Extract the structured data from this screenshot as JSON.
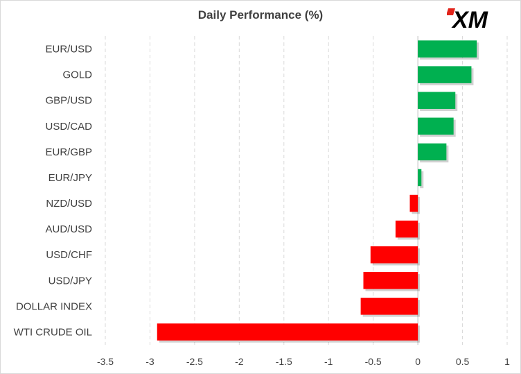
{
  "title": "Daily Performance (%)",
  "logo_text": "XM",
  "colors": {
    "positive": "#00b050",
    "negative": "#ff0000",
    "grid": "#d9d9d9",
    "text": "#404040"
  },
  "chart_data": {
    "type": "bar",
    "orientation": "horizontal",
    "title": "Daily Performance (%)",
    "categories": [
      "EUR/USD",
      "GOLD",
      "GBP/USD",
      "USD/CAD",
      "EUR/GBP",
      "EUR/JPY",
      "NZD/USD",
      "AUD/USD",
      "USD/CHF",
      "USD/JPY",
      "DOLLAR INDEX",
      "WTI CRUDE OIL"
    ],
    "values": [
      0.66,
      0.6,
      0.42,
      0.4,
      0.32,
      0.04,
      -0.09,
      -0.25,
      -0.53,
      -0.61,
      -0.64,
      -2.92
    ],
    "xlim": [
      -3.5,
      1
    ],
    "xticks": [
      -3.5,
      -3,
      -2.5,
      -2,
      -1.5,
      -1,
      -0.5,
      0,
      0.5,
      1
    ],
    "xtick_labels": [
      "-3.5",
      "-3",
      "-2.5",
      "-2",
      "-1.5",
      "-1",
      "-0.5",
      "0",
      "0.5",
      "1"
    ],
    "grid": "vertical dashed",
    "legend": "none"
  }
}
